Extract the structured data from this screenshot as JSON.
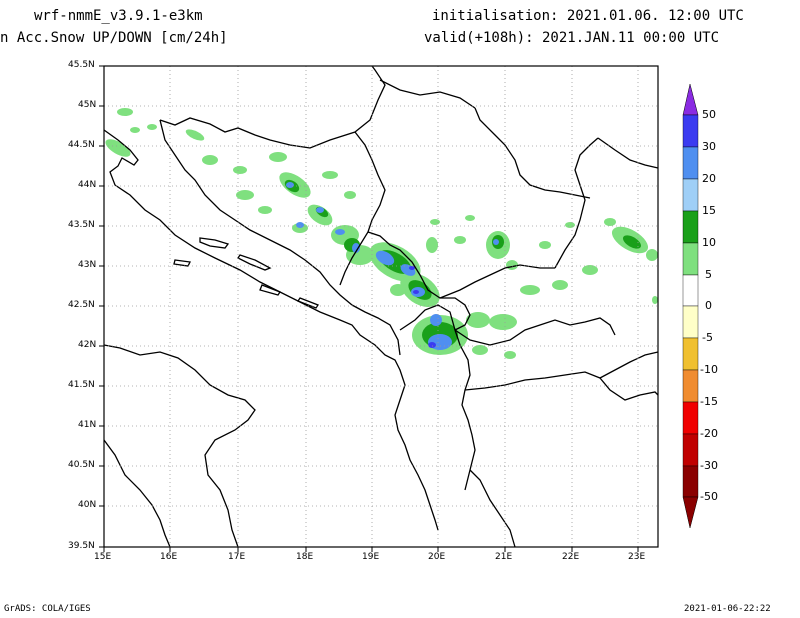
{
  "header": {
    "model": "wrf-nmmE_v3.9.1-e3km",
    "variable": "n Acc.Snow UP/DOWN [cm/24h]",
    "initialisation": "initialisation: 2021.01.06. 12:00 UTC",
    "valid": "valid(+108h): 2021.JAN.11 00:00 UTC"
  },
  "axes": {
    "lat_labels": [
      "45.5N",
      "45N",
      "44.5N",
      "44N",
      "43.5N",
      "43N",
      "42.5N",
      "42N",
      "41.5N",
      "41N",
      "40.5N",
      "40N",
      "39.5N"
    ],
    "lon_labels": [
      "15E",
      "16E",
      "17E",
      "18E",
      "19E",
      "20E",
      "21E",
      "22E",
      "23E"
    ]
  },
  "colorbar": {
    "labels": [
      "50",
      "30",
      "20",
      "15",
      "10",
      "5",
      "0",
      "-5",
      "-10",
      "-15",
      "-20",
      "-30",
      "-50"
    ],
    "colors": [
      "#8a2be2",
      "#3b3bf0",
      "#4f8ff0",
      "#9fcff7",
      "#1aa01a",
      "#7fe07f",
      "#ffffff",
      "#ffffc8",
      "#f0c030",
      "#f08c30",
      "#f00000",
      "#c00000",
      "#8a0000"
    ]
  },
  "footer": {
    "left": "GrADS: COLA/IGES",
    "right": "2021-01-06-22:22"
  }
}
